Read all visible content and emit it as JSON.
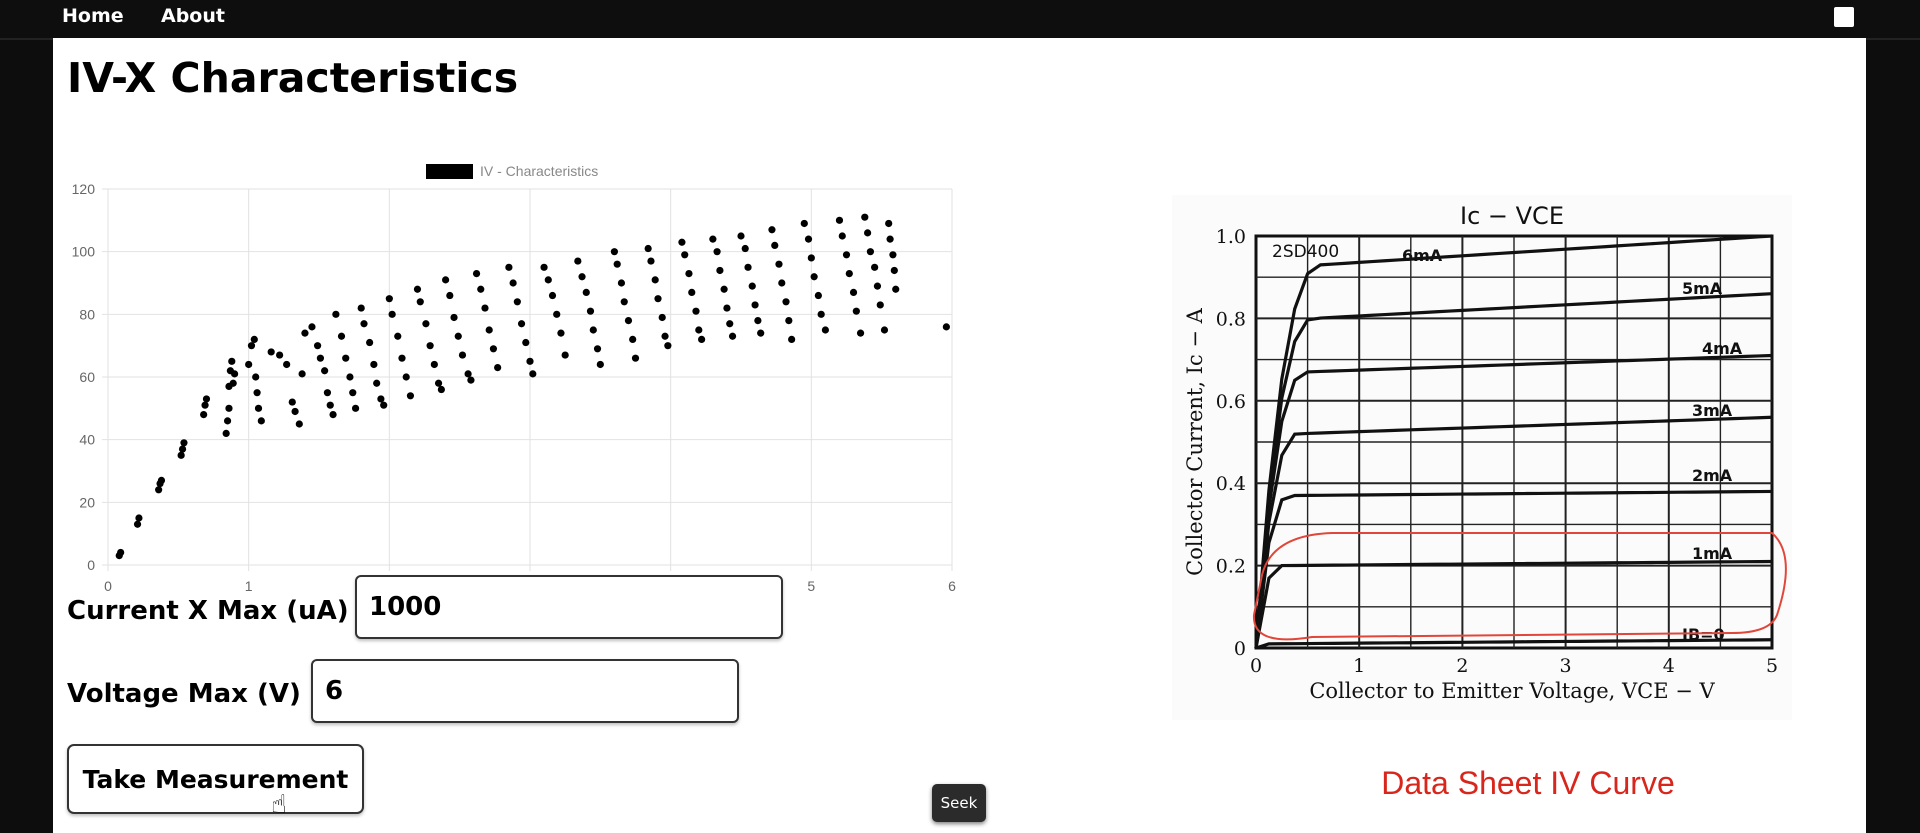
{
  "nav": {
    "home": "Home",
    "about": "About"
  },
  "page": {
    "title": "IV-X Characteristics"
  },
  "form": {
    "current_label": "Current X Max (uA)",
    "current_value": "1000",
    "voltage_label": "Voltage Max (V)",
    "voltage_value": "6",
    "button_label": "Take Measurement"
  },
  "seek_label": "Seek",
  "datasheet": {
    "title": "Ic − VCE",
    "part": "2SD400",
    "ylabel": "Collector Current, Ic − A",
    "xlabel": "Collector to Emitter Voltage, VCE − V",
    "caption": "Data Sheet IV Curve",
    "x_ticks": [
      "0",
      "1",
      "2",
      "3",
      "4",
      "5"
    ],
    "y_ticks": [
      "0",
      "0.2",
      "0.4",
      "0.6",
      "0.8",
      "1.0"
    ],
    "curves": [
      {
        "label": "6mA",
        "sat": 0.93,
        "end": 1.0
      },
      {
        "label": "5mA",
        "sat": 0.8,
        "end": 0.86
      },
      {
        "label": "4mA",
        "sat": 0.67,
        "end": 0.71
      },
      {
        "label": "3mA",
        "sat": 0.52,
        "end": 0.56
      },
      {
        "label": "2mA",
        "sat": 0.37,
        "end": 0.38
      },
      {
        "label": "1mA",
        "sat": 0.2,
        "end": 0.21
      },
      {
        "label": "IB=0",
        "sat": 0.01,
        "end": 0.02
      }
    ]
  },
  "chart_data": {
    "type": "scatter",
    "legend": "IV - Characteristics",
    "xlim": [
      0,
      6
    ],
    "ylim": [
      0,
      120
    ],
    "x_ticks": [
      0,
      1,
      2,
      3,
      4,
      5,
      6
    ],
    "y_ticks": [
      0,
      20,
      40,
      60,
      80,
      100,
      120
    ],
    "grid": true,
    "legend_position": "top",
    "points": [
      [
        0.08,
        3
      ],
      [
        0.09,
        4
      ],
      [
        0.21,
        13
      ],
      [
        0.22,
        15
      ],
      [
        0.36,
        24
      ],
      [
        0.37,
        26
      ],
      [
        0.38,
        27
      ],
      [
        0.52,
        35
      ],
      [
        0.53,
        37
      ],
      [
        0.54,
        39
      ],
      [
        0.68,
        48
      ],
      [
        0.69,
        51
      ],
      [
        0.7,
        53
      ],
      [
        0.84,
        42
      ],
      [
        0.85,
        46
      ],
      [
        0.86,
        50
      ],
      [
        0.86,
        57
      ],
      [
        0.87,
        62
      ],
      [
        0.88,
        65
      ],
      [
        0.9,
        61
      ],
      [
        0.89,
        58
      ],
      [
        1.0,
        64
      ],
      [
        1.02,
        70
      ],
      [
        1.04,
        72
      ],
      [
        1.05,
        60
      ],
      [
        1.06,
        55
      ],
      [
        1.07,
        50
      ],
      [
        1.09,
        46
      ],
      [
        1.16,
        68
      ],
      [
        1.22,
        67
      ],
      [
        1.27,
        64
      ],
      [
        1.31,
        52
      ],
      [
        1.33,
        49
      ],
      [
        1.36,
        45
      ],
      [
        1.38,
        61
      ],
      [
        1.4,
        74
      ],
      [
        1.45,
        76
      ],
      [
        1.49,
        70
      ],
      [
        1.51,
        66
      ],
      [
        1.54,
        62
      ],
      [
        1.56,
        55
      ],
      [
        1.58,
        51
      ],
      [
        1.6,
        48
      ],
      [
        1.62,
        80
      ],
      [
        1.66,
        73
      ],
      [
        1.69,
        66
      ],
      [
        1.72,
        60
      ],
      [
        1.74,
        55
      ],
      [
        1.76,
        50
      ],
      [
        1.8,
        82
      ],
      [
        1.82,
        77
      ],
      [
        1.86,
        71
      ],
      [
        1.89,
        64
      ],
      [
        1.91,
        58
      ],
      [
        1.94,
        53
      ],
      [
        1.96,
        51
      ],
      [
        2.0,
        85
      ],
      [
        2.02,
        80
      ],
      [
        2.06,
        73
      ],
      [
        2.09,
        66
      ],
      [
        2.12,
        60
      ],
      [
        2.15,
        54
      ],
      [
        2.2,
        88
      ],
      [
        2.22,
        84
      ],
      [
        2.26,
        77
      ],
      [
        2.29,
        70
      ],
      [
        2.32,
        64
      ],
      [
        2.35,
        58
      ],
      [
        2.37,
        56
      ],
      [
        2.4,
        91
      ],
      [
        2.43,
        86
      ],
      [
        2.46,
        79
      ],
      [
        2.49,
        73
      ],
      [
        2.52,
        67
      ],
      [
        2.56,
        61
      ],
      [
        2.58,
        59
      ],
      [
        2.62,
        93
      ],
      [
        2.65,
        88
      ],
      [
        2.68,
        82
      ],
      [
        2.71,
        75
      ],
      [
        2.74,
        69
      ],
      [
        2.77,
        63
      ],
      [
        2.85,
        95
      ],
      [
        2.88,
        90
      ],
      [
        2.91,
        84
      ],
      [
        2.94,
        77
      ],
      [
        2.97,
        71
      ],
      [
        3.0,
        65
      ],
      [
        3.02,
        61
      ],
      [
        3.1,
        95
      ],
      [
        3.13,
        91
      ],
      [
        3.16,
        86
      ],
      [
        3.19,
        80
      ],
      [
        3.22,
        74
      ],
      [
        3.25,
        67
      ],
      [
        3.34,
        97
      ],
      [
        3.37,
        92
      ],
      [
        3.4,
        87
      ],
      [
        3.43,
        81
      ],
      [
        3.45,
        75
      ],
      [
        3.48,
        69
      ],
      [
        3.5,
        64
      ],
      [
        3.6,
        100
      ],
      [
        3.62,
        96
      ],
      [
        3.65,
        90
      ],
      [
        3.67,
        84
      ],
      [
        3.7,
        78
      ],
      [
        3.73,
        72
      ],
      [
        3.75,
        66
      ],
      [
        3.84,
        101
      ],
      [
        3.86,
        97
      ],
      [
        3.89,
        91
      ],
      [
        3.91,
        85
      ],
      [
        3.94,
        79
      ],
      [
        3.96,
        73
      ],
      [
        3.98,
        70
      ],
      [
        4.08,
        103
      ],
      [
        4.1,
        99
      ],
      [
        4.13,
        93
      ],
      [
        4.15,
        87
      ],
      [
        4.18,
        81
      ],
      [
        4.2,
        75
      ],
      [
        4.22,
        72
      ],
      [
        4.3,
        104
      ],
      [
        4.33,
        100
      ],
      [
        4.35,
        94
      ],
      [
        4.38,
        88
      ],
      [
        4.4,
        82
      ],
      [
        4.42,
        77
      ],
      [
        4.44,
        73
      ],
      [
        4.5,
        105
      ],
      [
        4.53,
        101
      ],
      [
        4.55,
        95
      ],
      [
        4.58,
        89
      ],
      [
        4.6,
        83
      ],
      [
        4.62,
        78
      ],
      [
        4.64,
        74
      ],
      [
        4.72,
        107
      ],
      [
        4.74,
        102
      ],
      [
        4.77,
        96
      ],
      [
        4.79,
        90
      ],
      [
        4.82,
        84
      ],
      [
        4.84,
        78
      ],
      [
        4.86,
        72
      ],
      [
        4.95,
        109
      ],
      [
        4.98,
        104
      ],
      [
        5.0,
        98
      ],
      [
        5.02,
        92
      ],
      [
        5.05,
        86
      ],
      [
        5.07,
        80
      ],
      [
        5.1,
        75
      ],
      [
        5.2,
        110
      ],
      [
        5.22,
        105
      ],
      [
        5.25,
        99
      ],
      [
        5.27,
        93
      ],
      [
        5.3,
        87
      ],
      [
        5.32,
        81
      ],
      [
        5.35,
        74
      ],
      [
        5.38,
        111
      ],
      [
        5.4,
        106
      ],
      [
        5.42,
        100
      ],
      [
        5.45,
        95
      ],
      [
        5.47,
        89
      ],
      [
        5.49,
        83
      ],
      [
        5.52,
        75
      ],
      [
        5.55,
        109
      ],
      [
        5.56,
        104
      ],
      [
        5.58,
        99
      ],
      [
        5.59,
        94
      ],
      [
        5.6,
        88
      ],
      [
        5.96,
        76
      ]
    ]
  }
}
